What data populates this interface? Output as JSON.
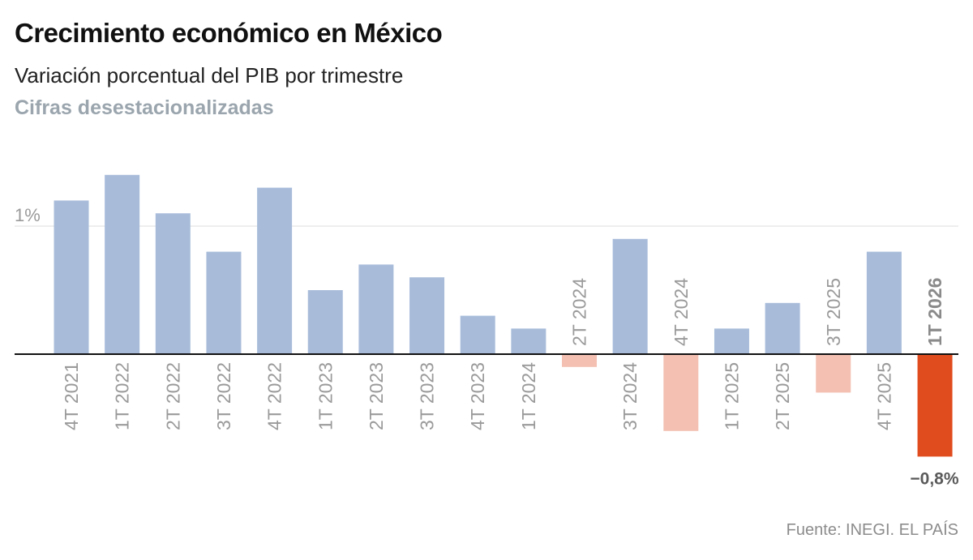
{
  "header": {
    "title": "Crecimiento económico en México",
    "subtitle": "Variación porcentual del PIB por trimestre",
    "note": "Cifras desestacionalizadas"
  },
  "footer": {
    "source": "Fuente: INEGI. EL PAÍS"
  },
  "colors": {
    "positive": "#a8bcda",
    "negative_light": "#f3c0b2",
    "highlight": "#e14c1f",
    "axis": "#111111",
    "grid": "#dddddd"
  },
  "chart_data": {
    "type": "bar",
    "categories": [
      "4T 2021",
      "1T 2022",
      "2T 2022",
      "3T 2022",
      "4T 2022",
      "1T 2023",
      "2T 2023",
      "3T 2023",
      "4T 2023",
      "1T 2024",
      "2T 2024",
      "3T 2024",
      "4T 2024",
      "1T 2025",
      "2T 2025",
      "3T 2025",
      "4T 2025",
      "1T 2026"
    ],
    "values": [
      1.2,
      1.4,
      1.1,
      0.8,
      1.3,
      0.5,
      0.7,
      0.6,
      0.3,
      0.2,
      -0.1,
      0.9,
      -0.6,
      0.2,
      0.4,
      -0.3,
      0.8,
      -0.8
    ],
    "highlight_category": "1T 2026",
    "y_ticks": [
      {
        "value": 1,
        "label": "1%"
      }
    ],
    "data_labels": [
      {
        "category": "1T 2026",
        "label": "−0,8%"
      }
    ],
    "ylim": [
      -0.8,
      1.4
    ],
    "xlabel": "",
    "ylabel": "",
    "grid": true,
    "legend": "none"
  }
}
